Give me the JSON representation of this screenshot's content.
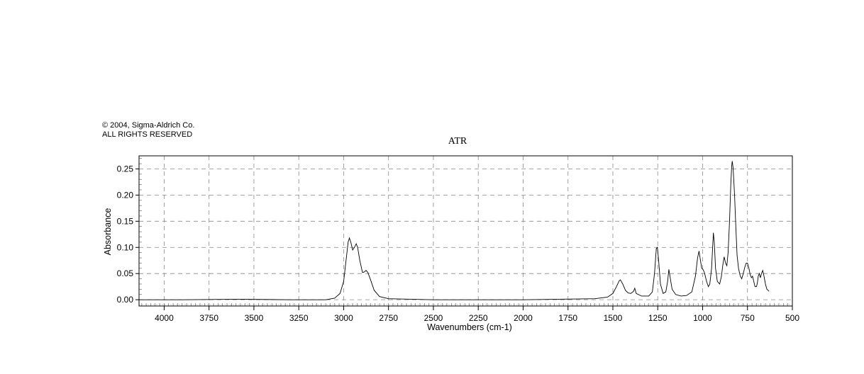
{
  "copyright": {
    "line1": "© 2004, Sigma-Aldrich Co.",
    "line2": "ALL RIGHTS RESERVED"
  },
  "chart_data": {
    "type": "line",
    "title": "ATR",
    "xlabel": "Wavenumbers (cm-1)",
    "ylabel": "Absorbance",
    "xlim": [
      4140,
      500
    ],
    "ylim": [
      -0.012,
      0.275
    ],
    "x_reversed": true,
    "grid": true,
    "grid_style": "dashed",
    "line_color": "#000000",
    "x_ticks": [
      4000,
      3750,
      3500,
      3250,
      3000,
      2750,
      2500,
      2250,
      2000,
      1750,
      1500,
      1250,
      1000,
      750,
      500
    ],
    "x_tick_labels": [
      "4000",
      "3750",
      "3500",
      "3250",
      "3000",
      "2750",
      "2500",
      "2250",
      "2000",
      "1750",
      "1500",
      "1250",
      "1000",
      "750",
      "500"
    ],
    "y_ticks": [
      0.0,
      0.05,
      0.1,
      0.15,
      0.2,
      0.25
    ],
    "y_tick_labels": [
      "0.00",
      "0.05",
      "0.10",
      "0.15",
      "0.20",
      "0.25"
    ],
    "series": [
      {
        "points": [
          [
            4140,
            0.0
          ],
          [
            3900,
            0.0
          ],
          [
            3600,
            0.001
          ],
          [
            3300,
            0.0
          ],
          [
            3100,
            0.0
          ],
          [
            3050,
            0.003
          ],
          [
            3020,
            0.012
          ],
          [
            3000,
            0.035
          ],
          [
            2985,
            0.08
          ],
          [
            2975,
            0.11
          ],
          [
            2968,
            0.118
          ],
          [
            2960,
            0.11
          ],
          [
            2950,
            0.095
          ],
          [
            2940,
            0.1
          ],
          [
            2930,
            0.107
          ],
          [
            2922,
            0.1
          ],
          [
            2910,
            0.075
          ],
          [
            2895,
            0.052
          ],
          [
            2885,
            0.053
          ],
          [
            2875,
            0.056
          ],
          [
            2865,
            0.052
          ],
          [
            2850,
            0.038
          ],
          [
            2830,
            0.018
          ],
          [
            2800,
            0.006
          ],
          [
            2750,
            0.002
          ],
          [
            2500,
            0.0
          ],
          [
            2200,
            0.0
          ],
          [
            2000,
            0.0
          ],
          [
            1800,
            0.001
          ],
          [
            1600,
            0.002
          ],
          [
            1530,
            0.005
          ],
          [
            1500,
            0.012
          ],
          [
            1480,
            0.025
          ],
          [
            1465,
            0.036
          ],
          [
            1458,
            0.038
          ],
          [
            1445,
            0.03
          ],
          [
            1430,
            0.018
          ],
          [
            1415,
            0.013
          ],
          [
            1400,
            0.012
          ],
          [
            1385,
            0.016
          ],
          [
            1378,
            0.022
          ],
          [
            1370,
            0.012
          ],
          [
            1340,
            0.007
          ],
          [
            1300,
            0.007
          ],
          [
            1280,
            0.015
          ],
          [
            1268,
            0.05
          ],
          [
            1258,
            0.098
          ],
          [
            1252,
            0.1
          ],
          [
            1245,
            0.075
          ],
          [
            1235,
            0.03
          ],
          [
            1220,
            0.012
          ],
          [
            1205,
            0.015
          ],
          [
            1195,
            0.035
          ],
          [
            1188,
            0.058
          ],
          [
            1182,
            0.045
          ],
          [
            1170,
            0.02
          ],
          [
            1150,
            0.01
          ],
          [
            1120,
            0.007
          ],
          [
            1090,
            0.008
          ],
          [
            1060,
            0.015
          ],
          [
            1040,
            0.045
          ],
          [
            1028,
            0.08
          ],
          [
            1020,
            0.093
          ],
          [
            1012,
            0.075
          ],
          [
            1005,
            0.06
          ],
          [
            998,
            0.058
          ],
          [
            990,
            0.052
          ],
          [
            978,
            0.035
          ],
          [
            968,
            0.025
          ],
          [
            960,
            0.03
          ],
          [
            950,
            0.06
          ],
          [
            945,
            0.095
          ],
          [
            940,
            0.128
          ],
          [
            935,
            0.11
          ],
          [
            928,
            0.06
          ],
          [
            918,
            0.035
          ],
          [
            905,
            0.03
          ],
          [
            895,
            0.045
          ],
          [
            888,
            0.065
          ],
          [
            880,
            0.082
          ],
          [
            872,
            0.07
          ],
          [
            865,
            0.065
          ],
          [
            858,
            0.09
          ],
          [
            850,
            0.15
          ],
          [
            843,
            0.22
          ],
          [
            838,
            0.255
          ],
          [
            835,
            0.265
          ],
          [
            830,
            0.252
          ],
          [
            822,
            0.2
          ],
          [
            815,
            0.14
          ],
          [
            808,
            0.085
          ],
          [
            800,
            0.06
          ],
          [
            790,
            0.045
          ],
          [
            782,
            0.04
          ],
          [
            775,
            0.048
          ],
          [
            765,
            0.062
          ],
          [
            757,
            0.07
          ],
          [
            750,
            0.07
          ],
          [
            742,
            0.06
          ],
          [
            735,
            0.048
          ],
          [
            728,
            0.042
          ],
          [
            722,
            0.045
          ],
          [
            715,
            0.035
          ],
          [
            708,
            0.025
          ],
          [
            700,
            0.025
          ],
          [
            695,
            0.032
          ],
          [
            690,
            0.045
          ],
          [
            684,
            0.05
          ],
          [
            678,
            0.042
          ],
          [
            672,
            0.05
          ],
          [
            665,
            0.056
          ],
          [
            658,
            0.045
          ],
          [
            650,
            0.03
          ],
          [
            642,
            0.02
          ],
          [
            635,
            0.018
          ],
          [
            630,
            0.016
          ]
        ]
      }
    ]
  }
}
